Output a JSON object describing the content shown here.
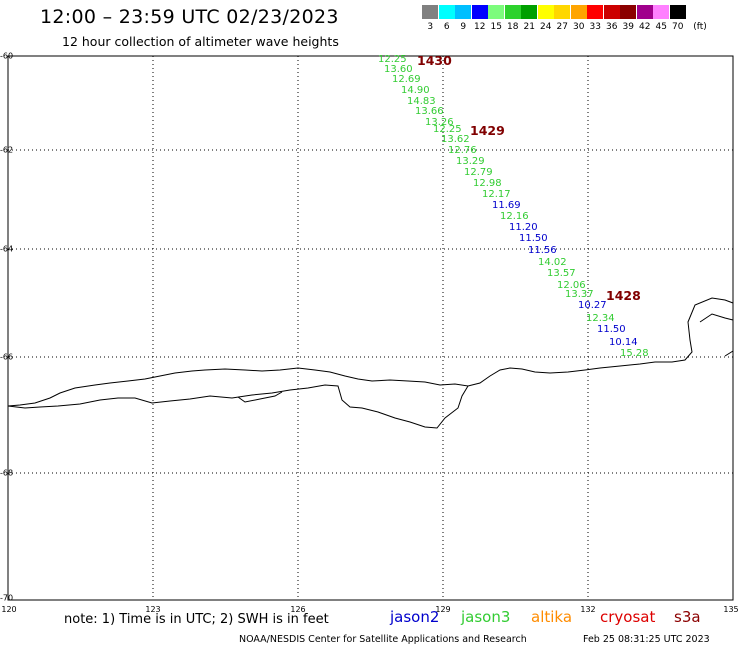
{
  "header": {
    "title": "12:00 – 23:59 UTC 02/23/2023",
    "subtitle": "12 hour collection of altimeter wave heights"
  },
  "scale": {
    "unit": "(ft)",
    "items": [
      {
        "label": "3",
        "color": "#808080"
      },
      {
        "label": "6",
        "color": "#00ffff"
      },
      {
        "label": "9",
        "color": "#00bfff"
      },
      {
        "label": "12",
        "color": "#0000ff"
      },
      {
        "label": "15",
        "color": "#7cfc7c"
      },
      {
        "label": "18",
        "color": "#2dd22d"
      },
      {
        "label": "21",
        "color": "#00a000"
      },
      {
        "label": "24",
        "color": "#ffff00"
      },
      {
        "label": "27",
        "color": "#ffd700"
      },
      {
        "label": "30",
        "color": "#ffa500"
      },
      {
        "label": "33",
        "color": "#ff0000"
      },
      {
        "label": "36",
        "color": "#cc0000"
      },
      {
        "label": "39",
        "color": "#8b0000"
      },
      {
        "label": "42",
        "color": "#a0008c"
      },
      {
        "label": "45",
        "color": "#ff80ff"
      },
      {
        "label": "70",
        "color": "#000000"
      }
    ]
  },
  "axes": {
    "lat_labels": [
      "-60",
      "-62",
      "-64",
      "-66",
      "-68",
      "-70"
    ],
    "lon_labels": [
      "120",
      "123",
      "126",
      "129",
      "132",
      "135"
    ]
  },
  "passes": [
    {
      "id": "pass-1430",
      "label": "1430"
    },
    {
      "id": "pass-1429",
      "label": "1429"
    },
    {
      "id": "pass-1428",
      "label": "1428"
    }
  ],
  "points": [
    {
      "v": "12.25",
      "sat": "jason3"
    },
    {
      "v": "13.60",
      "sat": "jason3"
    },
    {
      "v": "12.69",
      "sat": "jason3"
    },
    {
      "v": "14.90",
      "sat": "jason3"
    },
    {
      "v": "14.83",
      "sat": "jason3"
    },
    {
      "v": "13.66",
      "sat": "jason3"
    },
    {
      "v": "13.26",
      "sat": "jason3"
    },
    {
      "v": "12.25",
      "sat": "jason3"
    },
    {
      "v": "13.62",
      "sat": "jason3"
    },
    {
      "v": "12.76",
      "sat": "jason3"
    },
    {
      "v": "13.29",
      "sat": "jason3"
    },
    {
      "v": "12.79",
      "sat": "jason3"
    },
    {
      "v": "12.98",
      "sat": "jason3"
    },
    {
      "v": "12.17",
      "sat": "jason3"
    },
    {
      "v": "11.69",
      "sat": "jason2"
    },
    {
      "v": "12.16",
      "sat": "jason3"
    },
    {
      "v": "11.20",
      "sat": "jason2"
    },
    {
      "v": "11.50",
      "sat": "jason2"
    },
    {
      "v": "11.56",
      "sat": "jason2"
    },
    {
      "v": "14.02",
      "sat": "jason3"
    },
    {
      "v": "13.57",
      "sat": "jason3"
    },
    {
      "v": "12.06",
      "sat": "jason3"
    },
    {
      "v": "13.37",
      "sat": "jason3"
    },
    {
      "v": "10.27",
      "sat": "jason2"
    },
    {
      "v": "12.34",
      "sat": "jason3"
    },
    {
      "v": "11.50",
      "sat": "jason2"
    },
    {
      "v": "10.14",
      "sat": "jason2"
    },
    {
      "v": "15.28",
      "sat": "jason3"
    }
  ],
  "colors": {
    "jason2": "#0000cc",
    "jason3": "#33cc33",
    "altika": "#ff8c00",
    "cryosat": "#dd0000",
    "s3a": "#8b0000",
    "pass_label": "#800000"
  },
  "legend": {
    "note": "note: 1) Time is in UTC; 2) SWH is in feet",
    "sats": [
      {
        "key": "jason2",
        "label": "jason2"
      },
      {
        "key": "jason3",
        "label": "jason3"
      },
      {
        "key": "altika",
        "label": "altika"
      },
      {
        "key": "cryosat",
        "label": "cryosat"
      },
      {
        "key": "s3a",
        "label": "s3a"
      }
    ]
  },
  "footer": {
    "source": "NOAA/NESDIS Center for Satellite Applications and Research",
    "timestamp": "Feb 25 08:31:25 UTC 2023"
  }
}
